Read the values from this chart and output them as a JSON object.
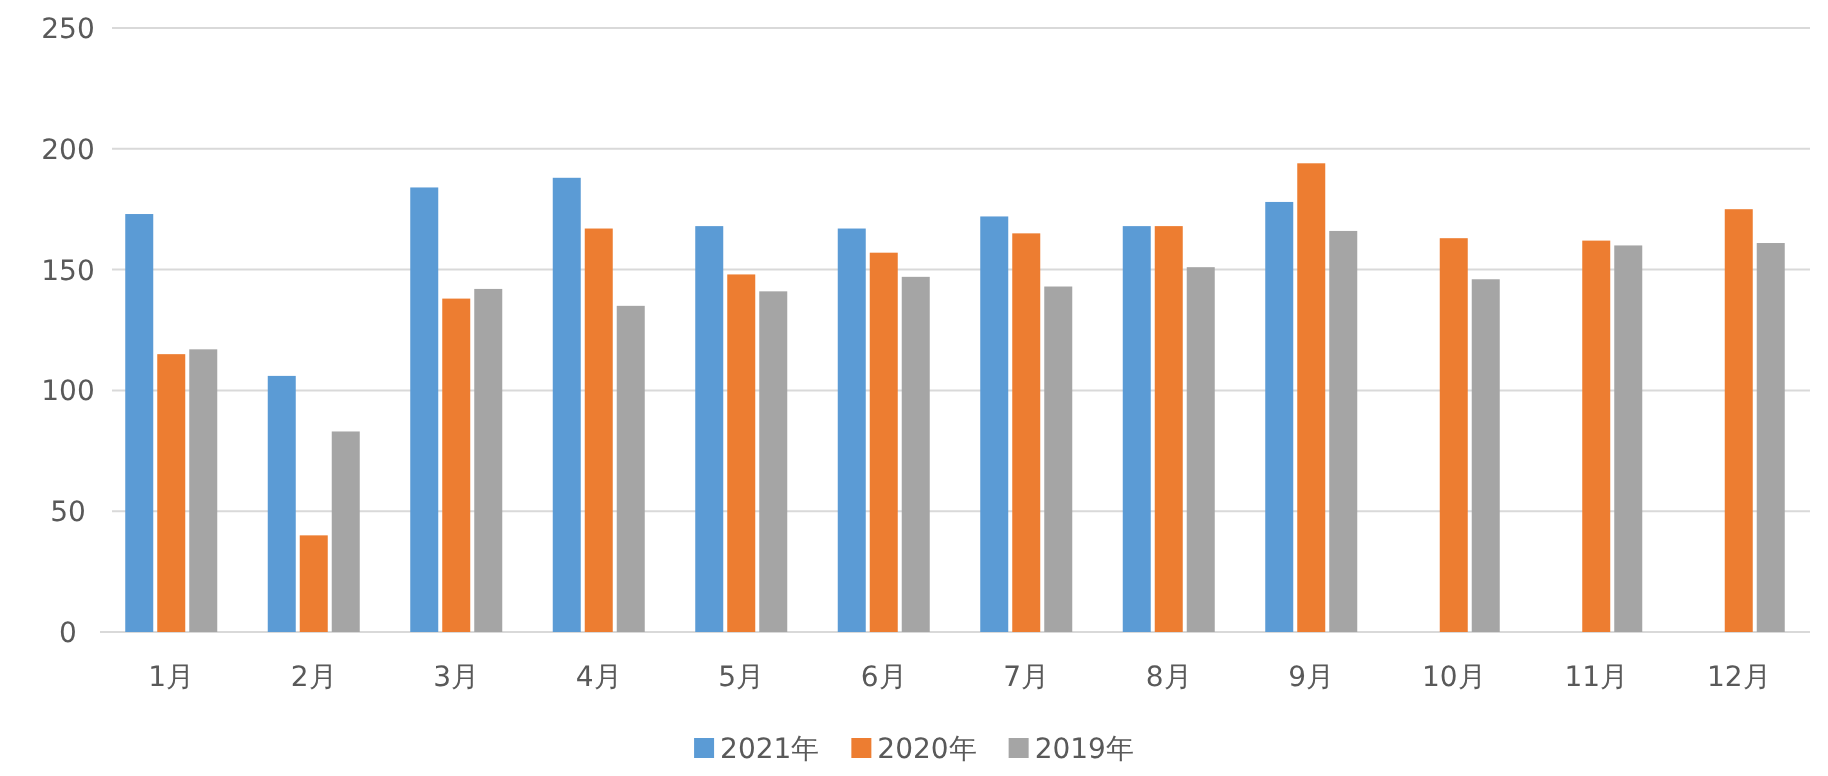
{
  "chart_data": {
    "type": "bar",
    "categories": [
      "1月",
      "2月",
      "3月",
      "4月",
      "5月",
      "6月",
      "7月",
      "8月",
      "9月",
      "10月",
      "11月",
      "12月"
    ],
    "series": [
      {
        "name": "2021年",
        "color": "#5b9bd5",
        "values": [
          173,
          106,
          184,
          188,
          168,
          167,
          172,
          168,
          178,
          null,
          null,
          null
        ]
      },
      {
        "name": "2020年",
        "color": "#ed7d31",
        "values": [
          115,
          40,
          138,
          167,
          148,
          157,
          165,
          168,
          194,
          163,
          162,
          175
        ]
      },
      {
        "name": "2019年",
        "color": "#a5a5a5",
        "values": [
          117,
          83,
          142,
          135,
          141,
          147,
          143,
          151,
          166,
          146,
          160,
          161
        ]
      }
    ],
    "ylim": [
      0,
      250
    ],
    "yticks": [
      0,
      50,
      100,
      150,
      200,
      250
    ],
    "grid": "y",
    "legend": "bottom"
  }
}
